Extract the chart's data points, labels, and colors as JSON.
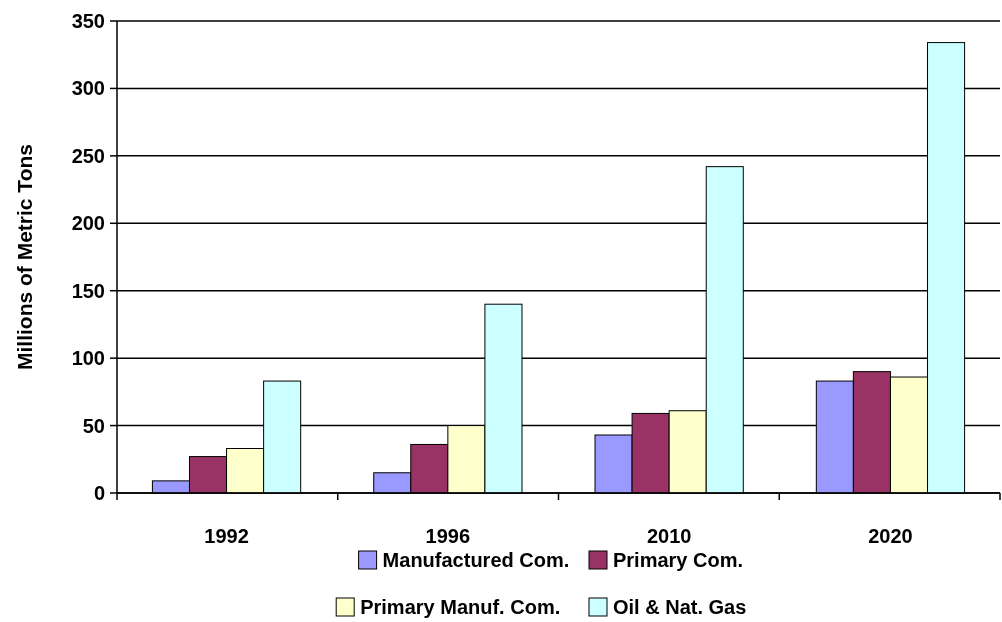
{
  "chart_data": {
    "type": "bar",
    "ylabel": "Millions of Metric Tons",
    "categories": [
      "1992",
      "1996",
      "2010",
      "2020"
    ],
    "series": [
      {
        "name": "Manufactured Com.",
        "color": "#9999ff",
        "values": [
          9,
          15,
          43,
          83
        ]
      },
      {
        "name": "Primary Com.",
        "color": "#993366",
        "values": [
          27,
          36,
          59,
          90
        ]
      },
      {
        "name": "Primary Manuf. Com.",
        "color": "#ffffcc",
        "values": [
          33,
          50,
          61,
          86
        ]
      },
      {
        "name": "Oil & Nat. Gas",
        "color": "#ccffff",
        "values": [
          83,
          140,
          242,
          334
        ]
      }
    ],
    "ylim": [
      0,
      350
    ],
    "yticks": [
      0,
      50,
      100,
      150,
      200,
      250,
      300,
      350
    ],
    "grid": "y",
    "legend": "bottom"
  }
}
